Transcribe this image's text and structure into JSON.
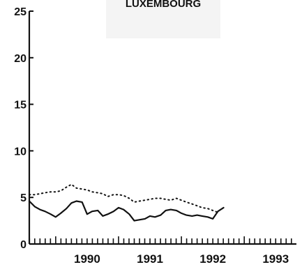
{
  "chart_data": {
    "type": "line",
    "title": "LUXEMBOURG",
    "xlabel": "",
    "ylabel": "",
    "ylim": [
      0,
      25
    ],
    "xlim": [
      1989.58,
      1993.83
    ],
    "yticks": [
      "0",
      "5",
      "10",
      "15",
      "20",
      "25"
    ],
    "xticks": [
      {
        "label": "1990",
        "value": 1990.0
      },
      {
        "label": "1991",
        "value": 1991.0
      },
      {
        "label": "1992",
        "value": 1992.0
      },
      {
        "label": "1993",
        "value": 1993.0
      }
    ],
    "grid": false,
    "legend": "none",
    "series": [
      {
        "style": "solid",
        "color": "#111111",
        "x": [
          1989.58,
          1989.67,
          1989.75,
          1989.83,
          1989.92,
          1990.0,
          1990.08,
          1990.17,
          1990.25,
          1990.33,
          1990.42,
          1990.5,
          1990.58,
          1990.67,
          1990.75,
          1990.83,
          1990.92,
          1991.0,
          1991.08,
          1991.17,
          1991.25,
          1991.33,
          1991.42,
          1991.5,
          1991.58,
          1991.67,
          1991.75,
          1991.83,
          1991.92,
          1992.0,
          1992.08,
          1992.17,
          1992.25,
          1992.33,
          1992.42,
          1992.5,
          1992.58,
          1992.67
        ],
        "y": [
          4.6,
          4.0,
          3.7,
          3.5,
          3.2,
          2.9,
          3.3,
          3.8,
          4.4,
          4.6,
          4.5,
          3.2,
          3.5,
          3.6,
          3.0,
          3.2,
          3.5,
          3.9,
          3.7,
          3.2,
          2.5,
          2.6,
          2.7,
          3.0,
          2.9,
          3.1,
          3.6,
          3.7,
          3.6,
          3.3,
          3.1,
          3.0,
          3.1,
          3.0,
          2.9,
          2.7,
          3.5,
          3.9
        ]
      },
      {
        "style": "dotted",
        "color": "#111111",
        "x": [
          1989.58,
          1989.67,
          1989.75,
          1989.83,
          1989.92,
          1990.0,
          1990.08,
          1990.17,
          1990.25,
          1990.33,
          1990.42,
          1990.5,
          1990.58,
          1990.67,
          1990.75,
          1990.83,
          1990.92,
          1991.0,
          1991.08,
          1991.17,
          1991.25,
          1991.33,
          1991.42,
          1991.5,
          1991.58,
          1991.67,
          1991.75,
          1991.83,
          1991.92,
          1992.0,
          1992.08,
          1992.17,
          1992.25,
          1992.33,
          1992.42,
          1992.5,
          1992.58
        ],
        "y": [
          5.3,
          5.3,
          5.4,
          5.5,
          5.6,
          5.6,
          5.7,
          6.1,
          6.4,
          6.0,
          5.9,
          5.8,
          5.6,
          5.5,
          5.4,
          5.1,
          5.3,
          5.3,
          5.2,
          4.9,
          4.5,
          4.6,
          4.7,
          4.8,
          4.9,
          4.9,
          4.8,
          4.7,
          4.9,
          4.7,
          4.5,
          4.3,
          4.1,
          3.9,
          3.8,
          3.6,
          3.4
        ]
      }
    ]
  }
}
